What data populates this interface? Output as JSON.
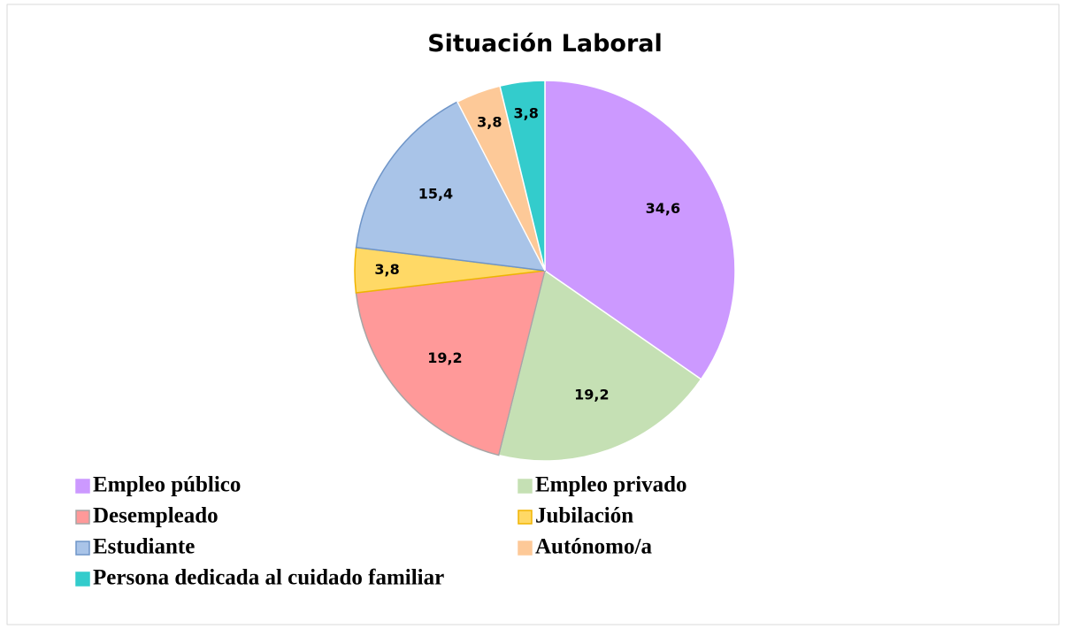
{
  "chart_data": {
    "type": "pie",
    "title": "Situación Laboral",
    "categories": [
      "Empleo público",
      "Empleo privado",
      "Desempleado",
      "Jubilación",
      "Estudiante",
      "Autónomo/a",
      "Persona dedicada al cuidado familiar"
    ],
    "values": [
      34.6,
      19.2,
      19.2,
      3.8,
      15.4,
      3.8,
      3.8
    ],
    "value_labels": [
      "34,6",
      "19,2",
      "19,2",
      "3,8",
      "15,4",
      "3,8",
      "3,8"
    ],
    "colors": [
      "#cc99ff",
      "#c5e0b4",
      "#ff9999",
      "#ffd966",
      "#a9c4e8",
      "#fdc998",
      "#33cccc"
    ],
    "legend": "bottom"
  }
}
